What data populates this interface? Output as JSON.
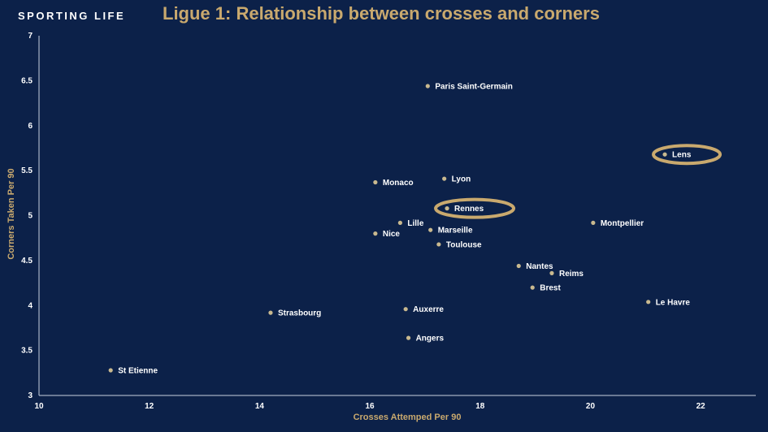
{
  "header": {
    "brand": "SPORTING LIFE"
  },
  "chart_data": {
    "type": "scatter",
    "title": "Ligue 1: Relationship between crosses and corners",
    "xlabel": "Crosses Attemped Per 90",
    "ylabel": "Corners Taken Per 90",
    "xlim": [
      10,
      23
    ],
    "ylim": [
      3,
      7
    ],
    "xticks": [
      "10",
      "12",
      "14",
      "16",
      "18",
      "20",
      "22"
    ],
    "yticks": [
      "3",
      "3.5",
      "4",
      "4.5",
      "5",
      "5.5",
      "6",
      "6.5",
      "7"
    ],
    "grid": false,
    "accent_color": "#c9a96e",
    "points": [
      {
        "label": "Paris Saint-Germain",
        "x": 17.05,
        "y": 6.44
      },
      {
        "label": "Lens",
        "x": 21.35,
        "y": 5.68,
        "highlight": true
      },
      {
        "label": "Lyon",
        "x": 17.35,
        "y": 5.41
      },
      {
        "label": "Monaco",
        "x": 16.1,
        "y": 5.37
      },
      {
        "label": "Rennes",
        "x": 17.4,
        "y": 5.08,
        "highlight": true
      },
      {
        "label": "Lille",
        "x": 16.55,
        "y": 4.92
      },
      {
        "label": "Montpellier",
        "x": 20.05,
        "y": 4.92
      },
      {
        "label": "Marseille",
        "x": 17.1,
        "y": 4.84
      },
      {
        "label": "Nice",
        "x": 16.1,
        "y": 4.8
      },
      {
        "label": "Toulouse",
        "x": 17.25,
        "y": 4.68
      },
      {
        "label": "Nantes",
        "x": 18.7,
        "y": 4.44
      },
      {
        "label": "Reims",
        "x": 19.3,
        "y": 4.36
      },
      {
        "label": "Brest",
        "x": 18.95,
        "y": 4.2
      },
      {
        "label": "Le Havre",
        "x": 21.05,
        "y": 4.04
      },
      {
        "label": "Auxerre",
        "x": 16.65,
        "y": 3.96
      },
      {
        "label": "Strasbourg",
        "x": 14.2,
        "y": 3.92
      },
      {
        "label": "Angers",
        "x": 16.7,
        "y": 3.64
      },
      {
        "label": "St Etienne",
        "x": 11.3,
        "y": 3.28
      }
    ]
  }
}
